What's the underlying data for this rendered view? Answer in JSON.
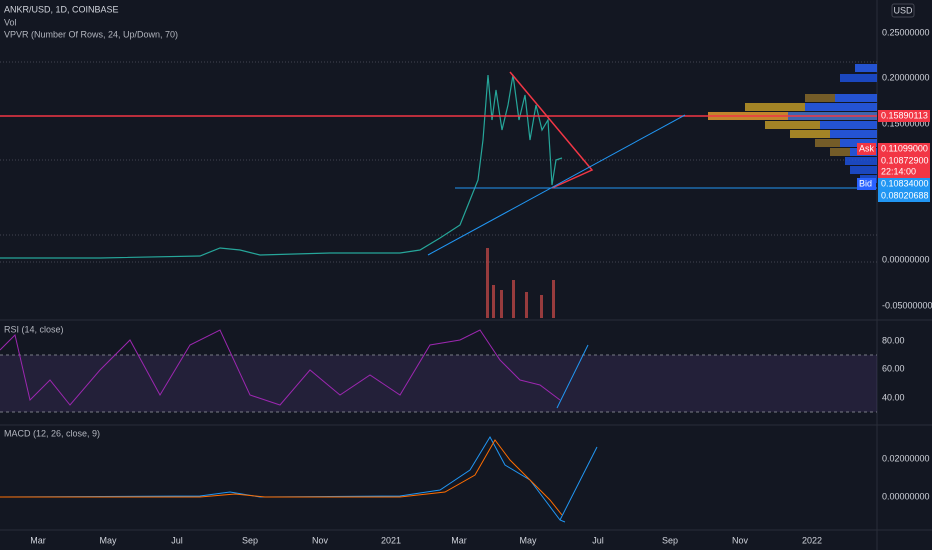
{
  "header": {
    "symbol": "ANKR/USD, 1D, COINBASE",
    "vol": "Vol",
    "vpvr": "VPVR (Number Of Rows, 24, Up/Down, 70)",
    "currency": "USD"
  },
  "price_axis": [
    "0.25000000",
    "0.20000000",
    "0.15000000",
    "0.00000000",
    "-0.05000000"
  ],
  "price_tags": {
    "level": "0.15890113",
    "ask_label": "Ask",
    "ask": "0.11099000",
    "last": "0.10872900",
    "countdown": "22:14:00",
    "bid_label": "Bid",
    "bid": "0.10834000",
    "low": "0.08020688"
  },
  "rsi": {
    "label": "RSI (14, close)",
    "ticks": [
      "80.00",
      "60.00",
      "40.00"
    ]
  },
  "macd": {
    "label": "MACD (12, 26, close, 9)",
    "ticks": [
      "0.02000000",
      "0.00000000"
    ]
  },
  "time_axis": [
    "Mar",
    "May",
    "Jul",
    "Sep",
    "Nov",
    "2021",
    "Mar",
    "May",
    "Jul",
    "Sep",
    "Nov",
    "2022"
  ]
}
